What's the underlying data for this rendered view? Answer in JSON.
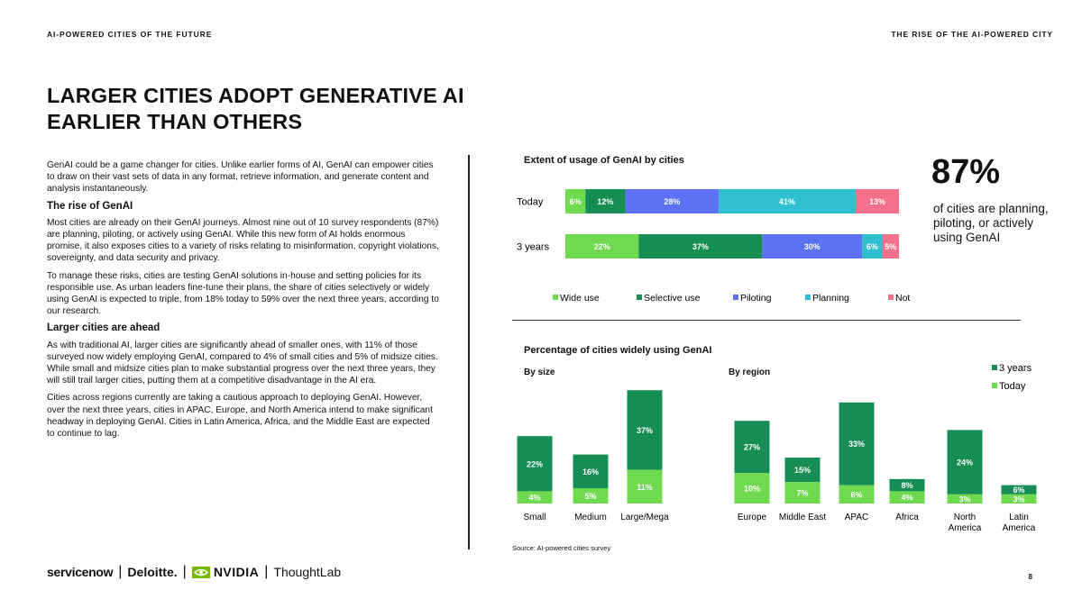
{
  "header": {
    "left": "AI-POWERED CITIES OF THE FUTURE",
    "right": "THE RISE OF THE AI-POWERED CITY"
  },
  "title": "LARGER CITIES ADOPT GENERATIVE AI EARLIER THAN OTHERS",
  "body": {
    "p1": "GenAI could be a game changer for cities. Unlike earlier forms of AI, GenAI can empower cities to draw on their vast sets of data in any format, retrieve information, and generate content and analysis instantaneously.",
    "h1": "The rise of GenAI",
    "p2": "Most cities are already on their GenAI journeys. Almost nine out of 10 survey respondents (87%) are planning, piloting, or actively using GenAI. While this new form of AI holds enormous promise, it also exposes cities to a variety of risks relating to misinformation, copyright violations, sovereignty, and data security and privacy.",
    "p3": "To manage these risks, cities are testing GenAI solutions in-house and setting policies for its responsible use. As urban leaders fine-tune their plans, the share of cities selectively or widely using GenAI is expected to triple, from 18% today to 59% over the next three years, according to our research.",
    "h2": "Larger cities are ahead",
    "p4": "As with traditional AI, larger cities are significantly ahead of smaller ones, with 11% of those surveyed now widely employing GenAI, compared to 4% of small cities and 5% of midsize cities. While small and midsize cities plan to make substantial progress over the next three years, they will still trail larger cities, putting them at a competitive disadvantage in the AI era.",
    "p5": "Cities across regions currently are taking a cautious approach to deploying GenAI. However, over the next three years, cities in APAC, Europe, and North America intend to make significant headway in deploying GenAI. Cities in Latin America, Africa, and the Middle East are expected to continue to lag."
  },
  "stat": {
    "value": "87%",
    "text": "of cities are planning, piloting, or actively using GenAI"
  },
  "source": "Source: AI-powered cities survey",
  "logos": {
    "servicenow": "servicenow",
    "deloitte": "Deloitte.",
    "nvidia": "NVIDIA",
    "thoughtlab": "ThoughtLab",
    "sep": "|"
  },
  "page_number": "8",
  "colors": {
    "wide_use": "#6fd94f",
    "selective_use": "#168e53",
    "piloting": "#5b73f2",
    "planning": "#2ec0cf",
    "not_using": "#f5708a",
    "text_on_bar": "#ffffff"
  },
  "chart_data": [
    {
      "type": "bar",
      "orientation": "horizontal",
      "stacked": true,
      "title": "Extent of usage of GenAI by cities",
      "categories": [
        "Today",
        "3 years"
      ],
      "series": [
        {
          "name": "Wide use",
          "values": [
            6,
            22
          ],
          "labels": [
            "6%",
            "22%"
          ],
          "color_key": "wide_use"
        },
        {
          "name": "Selective use",
          "values": [
            12,
            37
          ],
          "labels": [
            "12%",
            "37%"
          ],
          "color_key": "selective_use"
        },
        {
          "name": "Piloting",
          "values": [
            28,
            30
          ],
          "labels": [
            "28%",
            "30%"
          ],
          "color_key": "piloting"
        },
        {
          "name": "Planning",
          "values": [
            41,
            6
          ],
          "labels": [
            "41%",
            "6%"
          ],
          "color_key": "planning"
        },
        {
          "name": "Not using",
          "values": [
            13,
            5
          ],
          "labels": [
            "13%",
            "5%"
          ],
          "color_key": "not_using"
        }
      ],
      "legend_position": "bottom"
    },
    {
      "type": "bar",
      "stacked": true,
      "title": "Percentage of cities widely using GenAI",
      "panels": [
        {
          "subtitle": "By size",
          "categories": [
            "Small",
            "Medium",
            "Large/Mega"
          ],
          "today": [
            4,
            5,
            11
          ],
          "three_years": [
            22,
            16,
            37
          ],
          "today_labels": [
            "4%",
            "5%",
            "11%"
          ],
          "three_years_labels": [
            "22%",
            "16%",
            "37%"
          ]
        },
        {
          "subtitle": "By region",
          "categories": [
            "Europe",
            "Middle East",
            "APAC",
            "Africa",
            "North America",
            "Latin America"
          ],
          "today": [
            10,
            7,
            6,
            4,
            3,
            3
          ],
          "three_years": [
            27,
            15,
            33,
            8,
            24,
            6
          ],
          "today_labels": [
            "10%",
            "7%",
            "6%",
            "4%",
            "3%",
            "3%"
          ],
          "three_years_labels": [
            "27%",
            "15%",
            "33%",
            "8%",
            "24%",
            "6%"
          ]
        }
      ],
      "legend": [
        "3 years",
        "Today"
      ],
      "legend_position": "top-right"
    }
  ]
}
